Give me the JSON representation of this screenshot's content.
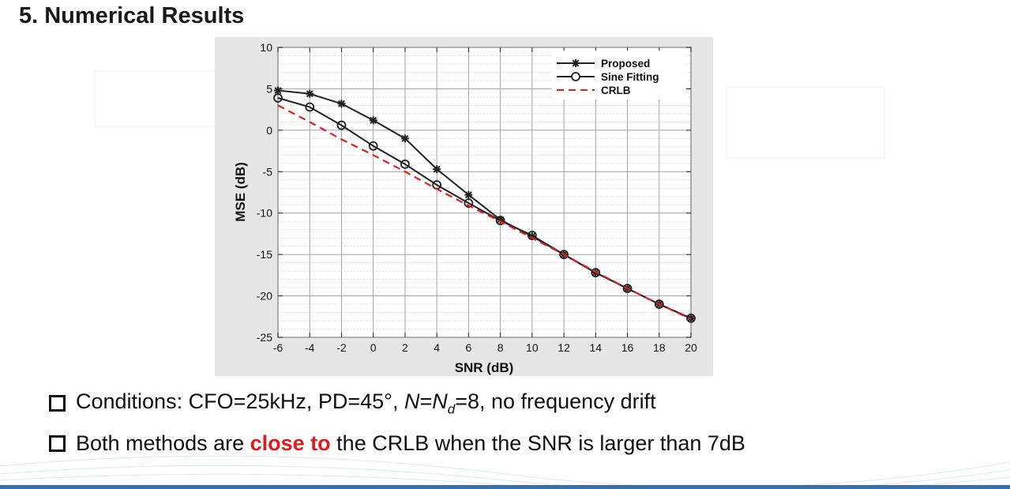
{
  "slide": {
    "title": "5. Numerical Results",
    "bullets": {
      "b1": {
        "prefix": "Conditions: CFO=25kHz, PD=45°, ",
        "n": "N",
        "eq": "=",
        "nd": "N",
        "nd_sub": "d",
        "suffix": "=8, no frequency drift"
      },
      "b2": {
        "pre": "Both methods are ",
        "highlight": "close to",
        "post": " the CRLB when the SNR is larger than 7dB"
      }
    }
  },
  "chart_data": {
    "type": "line",
    "title": "",
    "xlabel": "SNR (dB)",
    "ylabel": "MSE (dB)",
    "xlim": [
      -6,
      20
    ],
    "ylim": [
      -25,
      10
    ],
    "xticks": [
      -6,
      -4,
      -2,
      0,
      2,
      4,
      6,
      8,
      10,
      12,
      14,
      16,
      18,
      20
    ],
    "yticks": [
      10,
      5,
      0,
      -5,
      -10,
      -15,
      -20,
      -25
    ],
    "grid": true,
    "legend_position": "top-right",
    "x": [
      -6,
      -4,
      -2,
      0,
      2,
      4,
      6,
      8,
      10,
      12,
      14,
      16,
      18,
      20
    ],
    "series": [
      {
        "name": "Proposed",
        "marker": "asterisk",
        "color": "#222222",
        "dash": "solid",
        "values": [
          4.8,
          4.4,
          3.2,
          1.2,
          -1.0,
          -4.7,
          -7.8,
          -10.8,
          -12.8,
          -15.0,
          -17.2,
          -19.1,
          -21.0,
          -22.7
        ]
      },
      {
        "name": "Sine Fitting",
        "marker": "circle",
        "color": "#222222",
        "dash": "solid",
        "values": [
          3.9,
          2.8,
          0.6,
          -1.9,
          -4.1,
          -6.6,
          -8.8,
          -10.9,
          -12.7,
          -15.0,
          -17.2,
          -19.1,
          -21.0,
          -22.7
        ]
      },
      {
        "name": "CRLB",
        "marker": "none",
        "color": "#e02020",
        "dash": "dashed",
        "values": [
          3.0,
          1.0,
          -1.1,
          -3.0,
          -5.0,
          -7.1,
          -9.1,
          -11.0,
          -13.0,
          -15.0,
          -17.1,
          -19.1,
          -21.0,
          -22.8
        ]
      }
    ]
  }
}
